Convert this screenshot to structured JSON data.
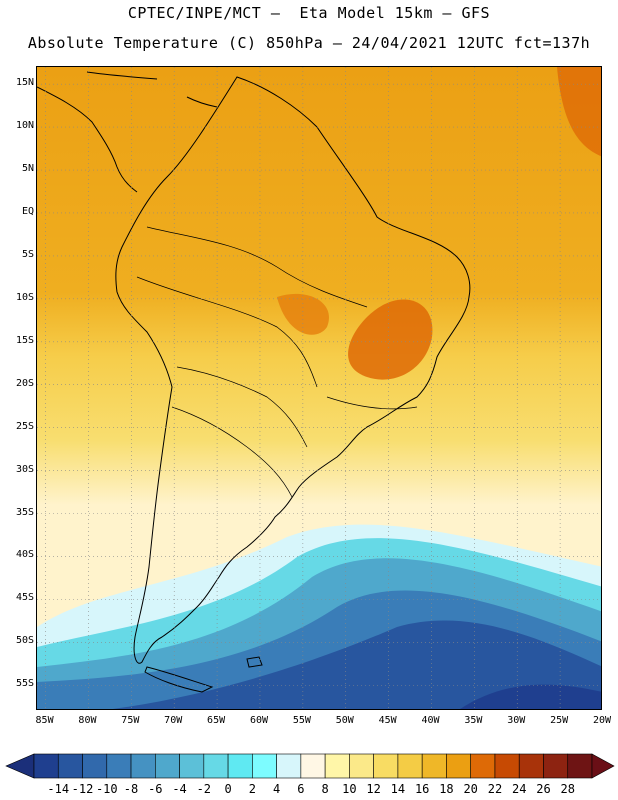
{
  "title_line1": "CPTEC/INPE/MCT –  Eta Model 15km – GFS",
  "title_line2": "Absolute Temperature (C) 850hPa – 24/04/2021 12UTC fct=137h",
  "map": {
    "lat_range": [
      17,
      -58
    ],
    "lon_range": [
      -86,
      -20
    ],
    "lat_ticks": [
      "15N",
      "10N",
      "5N",
      "EQ",
      "5S",
      "10S",
      "15S",
      "20S",
      "25S",
      "30S",
      "35S",
      "40S",
      "45S",
      "50S",
      "55S"
    ],
    "lon_ticks": [
      "85W",
      "80W",
      "75W",
      "70W",
      "65W",
      "60W",
      "55W",
      "50W",
      "45W",
      "40W",
      "35W",
      "30W",
      "25W",
      "20W"
    ],
    "grid": true,
    "coastline_color": "#000000"
  },
  "colorbar": {
    "labels": [
      "-14",
      "-12",
      "-10",
      "-8",
      "-6",
      "-4",
      "-2",
      "0",
      "2",
      "4",
      "6",
      "8",
      "10",
      "12",
      "14",
      "16",
      "18",
      "20",
      "22",
      "24",
      "26",
      "28"
    ],
    "colors": [
      "#1f3f8f",
      "#28569f",
      "#3169ac",
      "#3a7db8",
      "#4592c2",
      "#4fa8cc",
      "#5cc0d8",
      "#66d9e6",
      "#5fe9f2",
      "#7dfcff",
      "#d7f6fb",
      "#fff7e5",
      "#fff6a8",
      "#fbe989",
      "#f8dc63",
      "#f4cc45",
      "#efb728",
      "#eb9f12",
      "#de6a06",
      "#c74a03",
      "#a8330a",
      "#8d2311",
      "#6e1414"
    ],
    "arrow_left_color": "#1b2f7a",
    "arrow_right_color": "#6a0f16"
  }
}
